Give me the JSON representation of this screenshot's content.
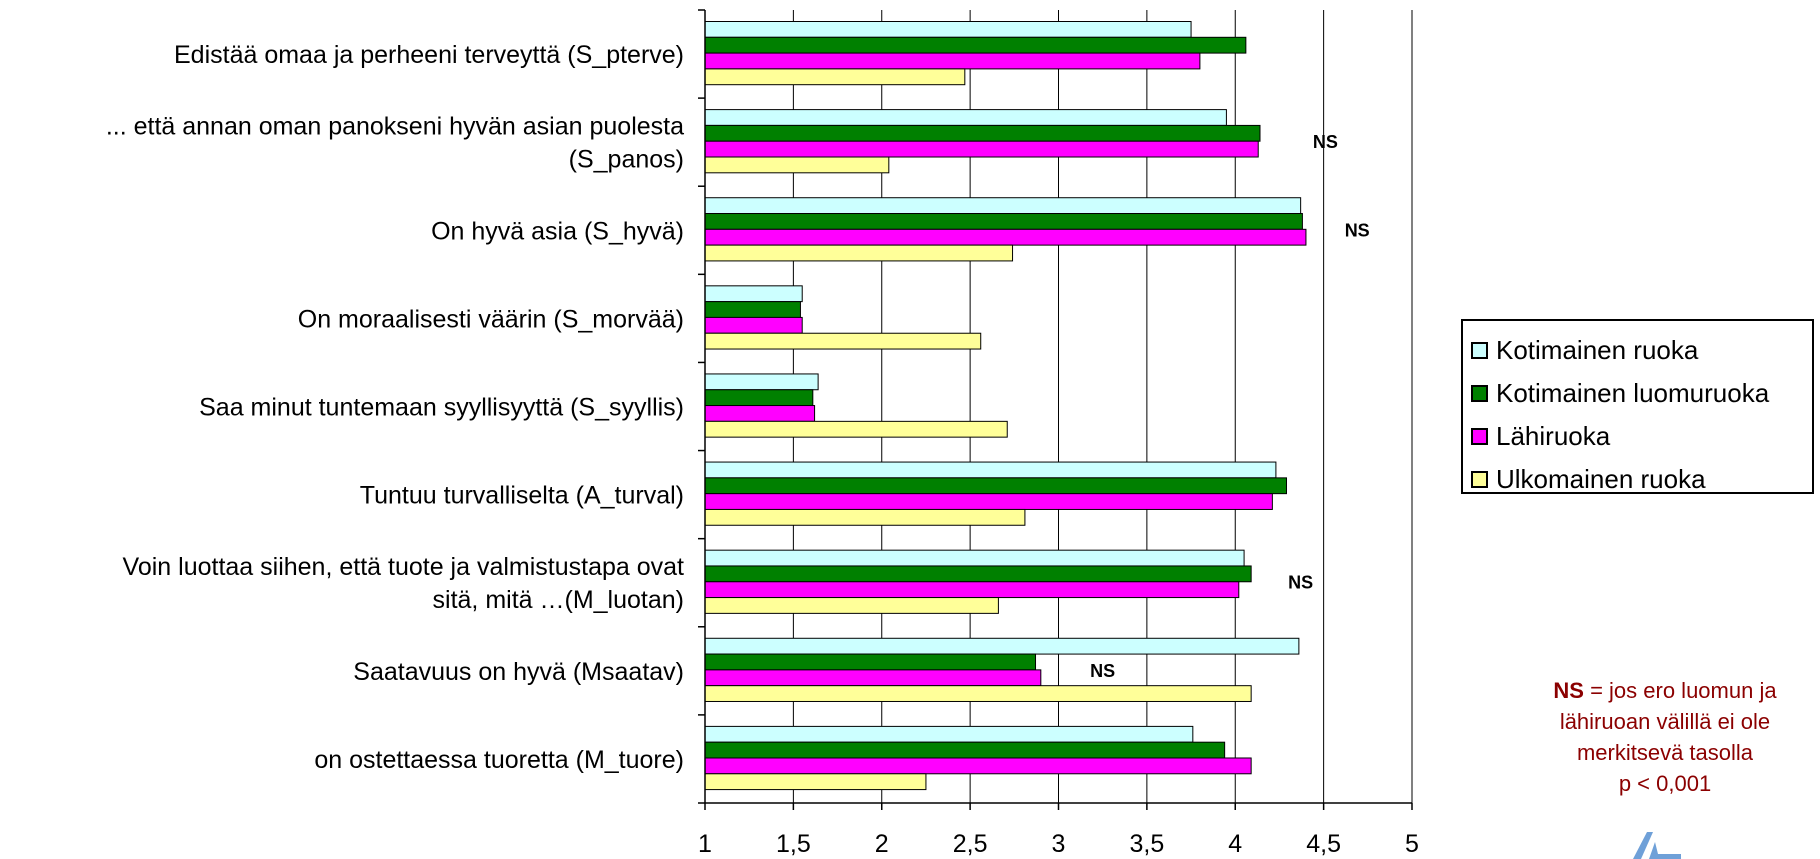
{
  "chart_data": {
    "type": "bar",
    "orientation": "horizontal",
    "categories": [
      [
        "Edistää omaa ja perheeni terveyttä (S_pterve)"
      ],
      [
        "... että annan oman panokseni hyvän asian puolesta",
        "(S_panos)"
      ],
      [
        "On hyvä asia (S_hyvä)"
      ],
      [
        "On moraalisesti väärin (S_morvää)"
      ],
      [
        "Saa minut tuntemaan syyllisyyttä (S_syyllis)"
      ],
      [
        "Tuntuu turvalliselta (A_turval)"
      ],
      [
        "Voin luottaa siihen, että tuote ja valmistustapa ovat",
        "sitä, mitä …(M_luotan)"
      ],
      [
        "Saatavuus on hyvä (Msaatav)"
      ],
      [
        "on ostettaessa tuoretta (M_tuore)"
      ]
    ],
    "series": [
      {
        "name": "Kotimainen ruoka",
        "color": "#ccffff",
        "values": [
          3.75,
          3.95,
          4.37,
          1.55,
          1.64,
          4.23,
          4.05,
          4.36,
          3.76
        ]
      },
      {
        "name": "Kotimainen luomuruoka",
        "color": "#008000",
        "values": [
          4.06,
          4.14,
          4.38,
          1.54,
          1.61,
          4.29,
          4.09,
          2.87,
          3.94
        ]
      },
      {
        "name": "Lähiruoka",
        "color": "#ff00ff",
        "values": [
          3.8,
          4.13,
          4.4,
          1.55,
          1.62,
          4.21,
          4.02,
          2.9,
          4.09
        ]
      },
      {
        "name": "Ulkomainen ruoka",
        "color": "#ffff99",
        "values": [
          2.47,
          2.04,
          2.74,
          2.56,
          2.71,
          2.81,
          2.66,
          4.09,
          2.25
        ]
      }
    ],
    "xlim": [
      1,
      5
    ],
    "x_ticks": [
      "1",
      "1,5",
      "2",
      "2,5",
      "3",
      "3,5",
      "4",
      "4,5",
      "5"
    ],
    "gridlines": "vertical",
    "ns_marks": [
      {
        "category_index": 1,
        "text": "NS",
        "x": 4.51
      },
      {
        "category_index": 2,
        "text": "NS",
        "x": 4.69
      },
      {
        "category_index": 6,
        "text": "NS",
        "x": 4.37
      },
      {
        "category_index": 7,
        "text": "NS",
        "x": 3.25
      }
    ],
    "legend_position": "right"
  },
  "note": {
    "ns": "NS",
    "lines": [
      " = jos ero luomun ja",
      "lähiruoan  välillä ei ole",
      "merkitsevä tasolla",
      "p < 0,001"
    ]
  }
}
